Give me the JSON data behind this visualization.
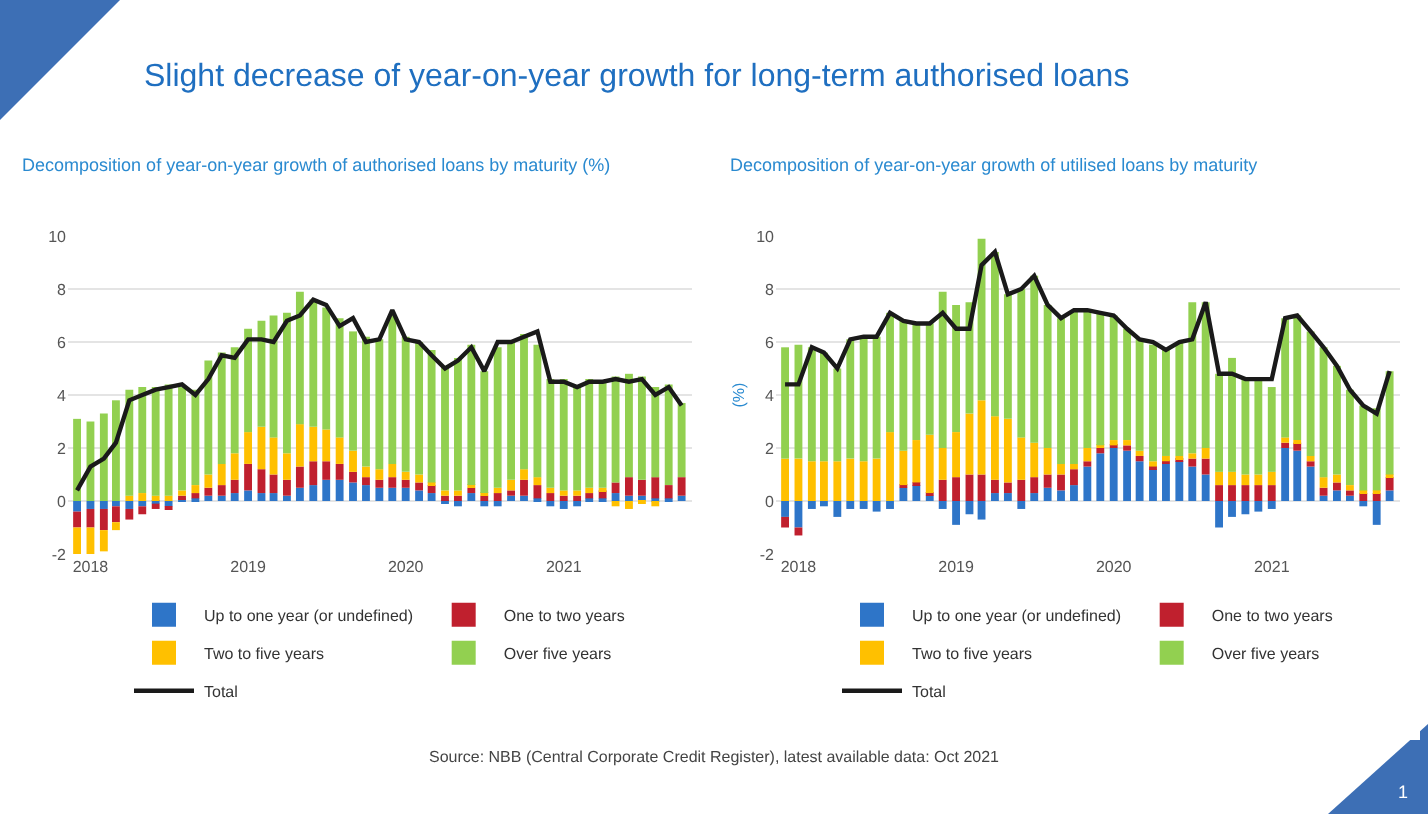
{
  "chart_data": [
    {
      "type": "bar",
      "title": "Decomposition of year-on-year growth of authorised loans by maturity (%)",
      "stacked": true,
      "grid": "y",
      "legend": "bottom",
      "annotations": [
        "Slight decrease of year-on-year growth for long-term authorised loans",
        "Source: NBB (Central Corporate Credit Register), latest available data: Oct 2021",
        "1"
      ],
      "x": [
        "2017-12",
        "2018-01",
        "2018-02",
        "2018-03",
        "2018-04",
        "2018-05",
        "2018-06",
        "2018-07",
        "2018-08",
        "2018-09",
        "2018-10",
        "2018-11",
        "2018-12",
        "2019-01",
        "2019-02",
        "2019-03",
        "2019-04",
        "2019-05",
        "2019-06",
        "2019-07",
        "2019-08",
        "2019-09",
        "2019-10",
        "2019-11",
        "2019-12",
        "2020-01",
        "2020-02",
        "2020-03",
        "2020-04",
        "2020-05",
        "2020-06",
        "2020-07",
        "2020-08",
        "2020-09",
        "2020-10",
        "2020-11",
        "2020-12",
        "2021-01",
        "2021-02",
        "2021-03",
        "2021-04",
        "2021-05",
        "2021-06",
        "2021-07",
        "2021-08",
        "2021-09",
        "2021-10"
      ],
      "xlim": [
        "2017-11-10",
        "2021-10-25"
      ],
      "xticks": [
        {
          "value": "2018-01",
          "label": "2018"
        },
        {
          "value": "2019-01",
          "label": "2019"
        },
        {
          "value": "2020-01",
          "label": "2020"
        },
        {
          "value": "2021-01",
          "label": "2021"
        }
      ],
      "ylim": [
        -2,
        10
      ],
      "yticks": [
        -2,
        0,
        2,
        4,
        6,
        8,
        10
      ],
      "series": [
        {
          "name": "Up to one year (or undefined)",
          "color": "#2e75c8",
          "values": [
            -0.4,
            -0.3,
            -0.3,
            -0.2,
            -0.3,
            -0.2,
            -0.1,
            -0.2,
            0.1,
            0.1,
            0.2,
            0.2,
            0.3,
            0.4,
            0.3,
            0.3,
            0.2,
            0.5,
            0.6,
            0.8,
            0.8,
            0.7,
            0.6,
            0.5,
            0.5,
            0.5,
            0.4,
            0.3,
            -0.1,
            -0.2,
            0.3,
            -0.2,
            -0.2,
            0.2,
            0.2,
            0.1,
            -0.2,
            -0.3,
            -0.2,
            0.1,
            0.1,
            0.3,
            0.2,
            0.2,
            0.1,
            0.1,
            0.2
          ]
        },
        {
          "name": "One to two years",
          "color": "#c0202e",
          "values": [
            -0.6,
            -0.7,
            -0.8,
            -0.6,
            -0.4,
            -0.3,
            -0.2,
            -0.1,
            0.1,
            0.2,
            0.3,
            0.4,
            0.5,
            1.0,
            0.9,
            0.7,
            0.6,
            0.8,
            0.9,
            0.7,
            0.6,
            0.4,
            0.3,
            0.3,
            0.4,
            0.3,
            0.3,
            0.3,
            0.2,
            0.2,
            0.2,
            0.2,
            0.3,
            0.2,
            0.6,
            0.5,
            0.3,
            0.2,
            0.2,
            0.2,
            0.3,
            0.4,
            0.7,
            0.6,
            0.8,
            0.5,
            0.7
          ]
        },
        {
          "name": "Two to five years",
          "color": "#ffc000",
          "values": [
            -1.2,
            -1.0,
            -0.8,
            -0.3,
            0.2,
            0.3,
            0.2,
            0.2,
            0.2,
            0.3,
            0.5,
            0.8,
            1.0,
            1.2,
            1.6,
            1.4,
            1.0,
            1.6,
            1.3,
            1.2,
            1.0,
            0.8,
            0.4,
            0.4,
            0.5,
            0.3,
            0.3,
            0.1,
            0.2,
            0.2,
            0.1,
            0.1,
            0.2,
            0.4,
            0.4,
            0.3,
            0.2,
            0.2,
            0.2,
            0.2,
            0.1,
            -0.2,
            -0.3,
            -0.1,
            -0.2,
            0.0,
            0.0
          ]
        },
        {
          "name": "Over five years",
          "color": "#92d050",
          "values": [
            3.1,
            3.0,
            3.3,
            3.8,
            4.0,
            4.0,
            4.1,
            4.2,
            3.9,
            3.6,
            4.3,
            4.2,
            4.0,
            3.9,
            4.0,
            4.6,
            5.3,
            5.0,
            4.8,
            4.6,
            4.5,
            4.5,
            4.9,
            4.9,
            5.6,
            5.1,
            5.0,
            5.0,
            4.7,
            5.0,
            5.3,
            4.6,
            5.3,
            5.2,
            5.1,
            5.0,
            4.1,
            4.2,
            3.9,
            4.1,
            4.0,
            4.0,
            3.9,
            3.9,
            3.4,
            3.8,
            2.8
          ]
        },
        {
          "name": "Total",
          "type": "line",
          "color": "#1a1a1a",
          "values": [
            0.4,
            1.3,
            1.6,
            2.2,
            3.8,
            4.0,
            4.2,
            4.3,
            4.4,
            4.0,
            4.6,
            5.5,
            5.4,
            6.1,
            6.1,
            6.0,
            6.8,
            7.0,
            7.6,
            7.4,
            6.6,
            6.9,
            6.0,
            6.1,
            7.2,
            6.1,
            6.0,
            5.5,
            5.0,
            5.3,
            5.8,
            4.9,
            6.0,
            6.0,
            6.2,
            6.4,
            4.5,
            4.5,
            4.3,
            4.5,
            4.5,
            4.6,
            4.5,
            4.6,
            4.0,
            4.3,
            3.6
          ]
        }
      ]
    },
    {
      "type": "bar",
      "title": "Decomposition of year-on-year growth of utilised loans by maturity",
      "ylabel": "(%)",
      "stacked": true,
      "grid": "y",
      "legend": "bottom",
      "x": [
        "2017-12",
        "2018-01",
        "2018-02",
        "2018-03",
        "2018-04",
        "2018-05",
        "2018-06",
        "2018-07",
        "2018-08",
        "2018-09",
        "2018-10",
        "2018-11",
        "2018-12",
        "2019-01",
        "2019-02",
        "2019-03",
        "2019-04",
        "2019-05",
        "2019-06",
        "2019-07",
        "2019-08",
        "2019-09",
        "2019-10",
        "2019-11",
        "2019-12",
        "2020-01",
        "2020-02",
        "2020-03",
        "2020-04",
        "2020-05",
        "2020-06",
        "2020-07",
        "2020-08",
        "2020-09",
        "2020-10",
        "2020-11",
        "2020-12",
        "2021-01",
        "2021-02",
        "2021-03",
        "2021-04",
        "2021-05",
        "2021-06",
        "2021-07",
        "2021-08",
        "2021-09",
        "2021-10"
      ],
      "xlim": [
        "2017-11-10",
        "2021-10-25"
      ],
      "xticks": [
        {
          "value": "2018-01",
          "label": "2018"
        },
        {
          "value": "2019-01",
          "label": "2019"
        },
        {
          "value": "2020-01",
          "label": "2020"
        },
        {
          "value": "2021-01",
          "label": "2021"
        }
      ],
      "ylim": [
        -2,
        10
      ],
      "yticks": [
        -2,
        0,
        2,
        4,
        6,
        8,
        10
      ],
      "series": [
        {
          "name": "Up to one year (or undefined)",
          "color": "#2e75c8",
          "values": [
            -0.6,
            -1.0,
            -0.3,
            -0.2,
            -0.6,
            -0.3,
            -0.3,
            -0.4,
            -0.3,
            0.5,
            0.6,
            0.2,
            -0.3,
            -0.9,
            -0.5,
            -0.7,
            0.3,
            0.3,
            -0.3,
            0.3,
            0.5,
            0.4,
            0.6,
            1.3,
            1.8,
            2.0,
            1.9,
            1.5,
            1.2,
            1.4,
            1.5,
            1.3,
            1.0,
            -1.0,
            -0.6,
            -0.5,
            -0.4,
            -0.3,
            2.0,
            1.9,
            1.3,
            0.2,
            0.4,
            0.2,
            -0.2,
            -0.9,
            0.4
          ]
        },
        {
          "name": "One to two years",
          "color": "#c0202e",
          "values": [
            -0.4,
            -0.3,
            0.0,
            0.0,
            0.0,
            0.0,
            0.0,
            0.0,
            0.0,
            0.1,
            0.1,
            0.1,
            0.8,
            0.9,
            1.0,
            1.0,
            0.5,
            0.4,
            0.8,
            0.6,
            0.5,
            0.6,
            0.6,
            0.2,
            0.2,
            0.1,
            0.2,
            0.2,
            0.1,
            0.1,
            0.1,
            0.3,
            0.6,
            0.6,
            0.6,
            0.6,
            0.6,
            0.6,
            0.2,
            0.3,
            0.2,
            0.3,
            0.3,
            0.2,
            0.3,
            0.3,
            0.5
          ]
        },
        {
          "name": "Two to five years",
          "color": "#ffc000",
          "values": [
            1.6,
            1.6,
            1.5,
            1.5,
            1.5,
            1.6,
            1.5,
            1.6,
            2.6,
            1.3,
            1.6,
            2.2,
            1.2,
            1.7,
            2.3,
            2.8,
            2.4,
            2.4,
            1.6,
            1.3,
            1.0,
            0.4,
            0.2,
            0.5,
            0.1,
            0.2,
            0.2,
            0.2,
            0.2,
            0.2,
            0.1,
            0.2,
            0.4,
            0.5,
            0.5,
            0.4,
            0.4,
            0.5,
            0.2,
            0.1,
            0.2,
            0.4,
            0.3,
            0.2,
            0.1,
            0.1,
            0.1
          ]
        },
        {
          "name": "Over five years",
          "color": "#92d050",
          "values": [
            4.2,
            4.3,
            4.3,
            4.1,
            3.5,
            4.5,
            4.7,
            4.6,
            4.5,
            4.9,
            4.4,
            4.2,
            5.9,
            4.8,
            4.2,
            6.1,
            6.2,
            4.7,
            5.6,
            6.3,
            5.4,
            5.5,
            5.8,
            5.2,
            5.0,
            4.7,
            4.2,
            4.2,
            4.4,
            4.0,
            4.3,
            5.7,
            5.5,
            3.7,
            4.3,
            3.6,
            3.6,
            3.2,
            4.5,
            4.7,
            4.7,
            4.9,
            4.1,
            3.6,
            3.2,
            3.1,
            3.9
          ]
        },
        {
          "name": "Total",
          "type": "line",
          "color": "#1a1a1a",
          "values": [
            4.4,
            4.4,
            5.8,
            5.6,
            5.0,
            6.1,
            6.2,
            6.2,
            7.1,
            6.8,
            6.7,
            6.7,
            7.1,
            6.5,
            6.5,
            8.9,
            9.4,
            7.8,
            8.0,
            8.5,
            7.4,
            6.9,
            7.2,
            7.2,
            7.1,
            7.0,
            6.5,
            6.1,
            6.0,
            5.7,
            6.0,
            6.1,
            7.5,
            4.8,
            4.8,
            4.6,
            4.6,
            4.6,
            6.9,
            7.0,
            6.4,
            5.8,
            5.1,
            4.2,
            3.6,
            3.3,
            4.9
          ]
        }
      ]
    }
  ]
}
